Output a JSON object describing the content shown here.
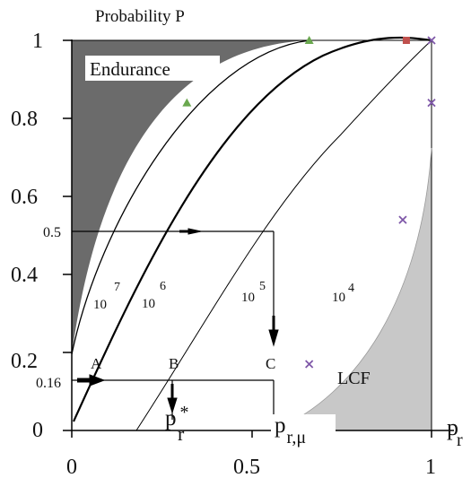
{
  "title": "Probability P",
  "regions": {
    "endurance": "Endurance",
    "lcf": "LCF"
  },
  "y_ticks": [
    {
      "label": "1",
      "value": 1.0
    },
    {
      "label": "0.8",
      "value": 0.8
    },
    {
      "label": "0.6",
      "value": 0.6
    },
    {
      "label": "0.4",
      "value": 0.4
    },
    {
      "label": "0.2",
      "value": 0.2
    },
    {
      "label": "0",
      "value": 0.0
    }
  ],
  "x_ticks": [
    {
      "label": "0",
      "value": 0.0
    },
    {
      "label": "0.5",
      "value": 0.5
    },
    {
      "label": "1",
      "value": 1.0
    }
  ],
  "x_axis_label": {
    "base": "p",
    "sub": "r"
  },
  "curves": [
    {
      "base": "10",
      "exp": "7"
    },
    {
      "base": "10",
      "exp": "6"
    },
    {
      "base": "10",
      "exp": "5"
    },
    {
      "base": "10",
      "exp": "4"
    }
  ],
  "levels": {
    "mid": "0.5",
    "low": "0.16"
  },
  "points": {
    "a": "A",
    "b": "B",
    "c": "C"
  },
  "pr_star": {
    "base": "p",
    "sub": "r",
    "sup": "*"
  },
  "pr_mu": {
    "base": "p",
    "sub": "r,μ"
  },
  "colors": {
    "endurance": "#6b6b6b",
    "lcf": "#c8c8c8",
    "line": "#000000",
    "green": "#6aa84f",
    "purple": "#7e57a8",
    "red": "#c0504d"
  },
  "markers": {
    "green_triangles": [
      [
        0.32,
        0.84
      ],
      [
        0.66,
        1.0
      ]
    ],
    "red_square": [
      [
        0.93,
        1.0
      ]
    ],
    "purple_x": [
      [
        0.66,
        0.17
      ],
      [
        0.92,
        0.54
      ],
      [
        1.0,
        0.84
      ],
      [
        1.0,
        1.0
      ]
    ]
  }
}
